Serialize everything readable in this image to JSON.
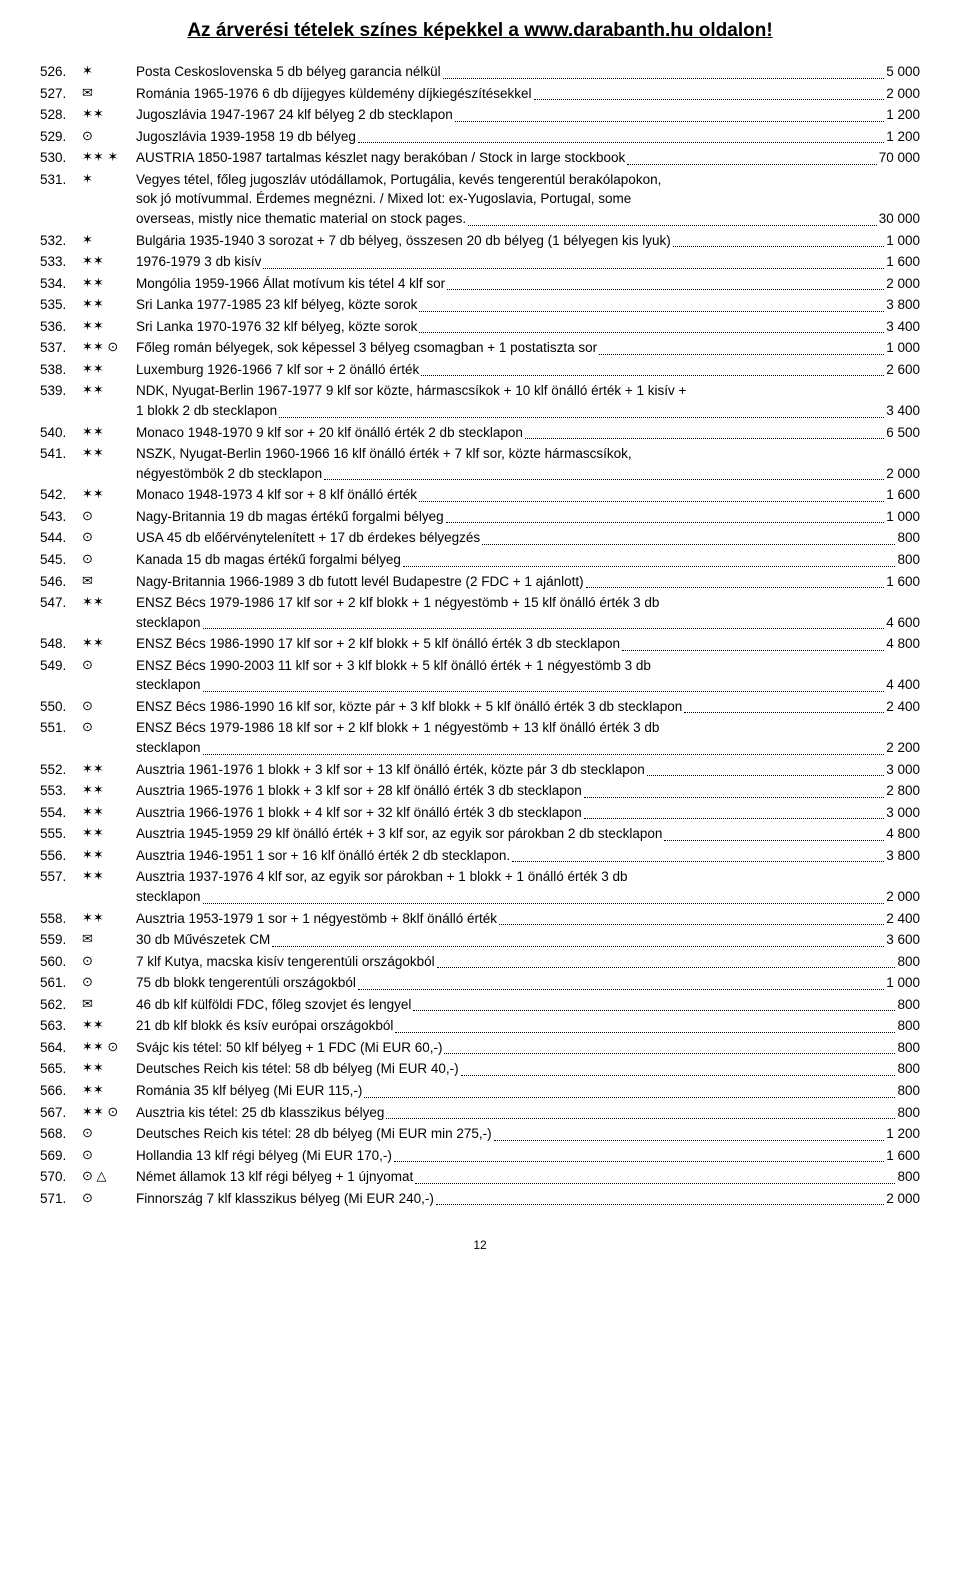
{
  "header": {
    "title": "Az árverési tételek színes képekkel a www.darabanth.hu oldalon!"
  },
  "page_number": "12",
  "items": [
    {
      "lot": "526.",
      "sym": "✶",
      "desc": "Posta Ceskoslovenska 5 db bélyeg garancia nélkül",
      "price": "5 000"
    },
    {
      "lot": "527.",
      "sym": "✉",
      "desc": "Románia 1965-1976 6 db díjjegyes küldemény díjkiegészítésekkel",
      "price": "2 000"
    },
    {
      "lot": "528.",
      "sym": "✶✶",
      "desc": "Jugoszlávia 1947-1967 24 klf bélyeg 2 db stecklapon",
      "price": "1 200"
    },
    {
      "lot": "529.",
      "sym": "⊙",
      "desc": "Jugoszlávia 1939-1958 19 db bélyeg",
      "price": "1 200"
    },
    {
      "lot": "530.",
      "sym": "✶✶ ✶",
      "desc": "AUSTRIA 1850-1987 tartalmas készlet nagy berakóban / Stock in large stockbook",
      "price": "70 000"
    },
    {
      "lot": "531.",
      "sym": "✶",
      "desc1": "Vegyes tétel, főleg jugoszláv utódállamok, Portugália, kevés tengerentúl berakólapokon,",
      "desc2": "sok jó motívummal. Érdemes megnézni. / Mixed lot: ex-Yugoslavia, Portugal, some",
      "desc3": "overseas, mistly nice thematic material on stock pages.",
      "price": "30 000",
      "multi": 3
    },
    {
      "lot": "532.",
      "sym": "✶",
      "desc": "Bulgária 1935-1940 3 sorozat + 7 db bélyeg, összesen 20 db bélyeg (1 bélyegen kis lyuk)",
      "price": "1 000"
    },
    {
      "lot": "533.",
      "sym": "✶✶",
      "desc": "1976-1979 3 db kisív",
      "price": "1 600"
    },
    {
      "lot": "534.",
      "sym": "✶✶",
      "desc": "Mongólia 1959-1966 Állat motívum kis tétel 4 klf sor",
      "price": "2 000"
    },
    {
      "lot": "535.",
      "sym": "✶✶",
      "desc": "Sri Lanka 1977-1985 23 klf bélyeg, közte sorok",
      "price": "3 800"
    },
    {
      "lot": "536.",
      "sym": "✶✶",
      "desc": "Sri Lanka 1970-1976 32 klf bélyeg, közte sorok",
      "price": "3 400"
    },
    {
      "lot": "537.",
      "sym": "✶✶ ⊙",
      "desc": "Főleg román bélyegek, sok képessel 3 bélyeg csomagban + 1 postatiszta sor",
      "price": "1 000"
    },
    {
      "lot": "538.",
      "sym": "✶✶",
      "desc": "Luxemburg 1926-1966 7 klf sor + 2 önálló érték",
      "price": "2 600"
    },
    {
      "lot": "539.",
      "sym": "✶✶",
      "desc1": "NDK, Nyugat-Berlin 1967-1977 9 klf sor közte, hármascsíkok + 10 klf önálló érték + 1 kisív +",
      "desc3": "1 blokk 2 db stecklapon",
      "price": "3 400",
      "multi": 2
    },
    {
      "lot": "540.",
      "sym": "✶✶",
      "desc": "Monaco 1948-1970 9 klf sor + 20 klf önálló érték 2 db stecklapon",
      "price": "6 500"
    },
    {
      "lot": "541.",
      "sym": "✶✶",
      "desc1": "NSZK, Nyugat-Berlin 1960-1966 16 klf önálló érték + 7 klf sor, közte hármascsíkok,",
      "desc3": "négyestömbök 2 db stecklapon",
      "price": "2 000",
      "multi": 2
    },
    {
      "lot": "542.",
      "sym": "✶✶",
      "desc": "Monaco 1948-1973 4 klf sor + 8 klf önálló érték",
      "price": "1 600"
    },
    {
      "lot": "543.",
      "sym": "⊙",
      "desc": "Nagy-Britannia 19 db magas értékű forgalmi bélyeg",
      "price": "1 000"
    },
    {
      "lot": "544.",
      "sym": "⊙",
      "desc": "USA 45 db előérvénytelenített + 17 db érdekes bélyegzés",
      "price": "800"
    },
    {
      "lot": "545.",
      "sym": "⊙",
      "desc": "Kanada 15 db magas értékű forgalmi bélyeg",
      "price": "800"
    },
    {
      "lot": "546.",
      "sym": "✉",
      "desc": "Nagy-Britannia 1966-1989 3 db futott levél Budapestre (2 FDC + 1 ajánlott)",
      "price": "1 600"
    },
    {
      "lot": "547.",
      "sym": "✶✶",
      "desc1": "ENSZ Bécs 1979-1986 17 klf sor + 2 klf blokk + 1 négyestömb + 15 klf önálló érték 3 db",
      "desc3": "stecklapon",
      "price": "4 600",
      "multi": 2
    },
    {
      "lot": "548.",
      "sym": "✶✶",
      "desc": "ENSZ Bécs 1986-1990 17 klf sor + 2 klf blokk + 5 klf önálló érték 3 db stecklapon",
      "price": "4 800"
    },
    {
      "lot": "549.",
      "sym": "⊙",
      "desc1": "ENSZ Bécs 1990-2003 11 klf sor + 3 klf blokk + 5 klf önálló érték + 1 négyestömb 3 db",
      "desc3": "stecklapon",
      "price": "4 400",
      "multi": 2
    },
    {
      "lot": "550.",
      "sym": "⊙",
      "desc": "ENSZ Bécs 1986-1990 16 klf sor, közte pár + 3 klf blokk + 5 klf önálló érték 3 db stecklapon",
      "price": "2 400"
    },
    {
      "lot": "551.",
      "sym": "⊙",
      "desc1": "ENSZ Bécs 1979-1986 18 klf sor + 2 klf blokk + 1 négyestömb + 13 klf önálló érték 3 db",
      "desc3": "stecklapon",
      "price": "2 200",
      "multi": 2
    },
    {
      "lot": "552.",
      "sym": "✶✶",
      "desc": "Ausztria 1961-1976 1 blokk + 3 klf sor + 13 klf önálló érték, közte pár 3 db stecklapon",
      "price": "3 000"
    },
    {
      "lot": "553.",
      "sym": "✶✶",
      "desc": "Ausztria 1965-1976 1 blokk + 3 klf sor + 28 klf önálló érték 3 db stecklapon",
      "price": "2 800"
    },
    {
      "lot": "554.",
      "sym": "✶✶",
      "desc": "Ausztria 1966-1976 1 blokk + 4 klf sor + 32 klf önálló érték 3 db stecklapon",
      "price": "3 000"
    },
    {
      "lot": "555.",
      "sym": "✶✶",
      "desc": "Ausztria 1945-1959 29 klf önálló érték + 3 klf sor, az egyik sor párokban 2 db stecklapon",
      "price": "4 800"
    },
    {
      "lot": "556.",
      "sym": "✶✶",
      "desc": "Ausztria 1946-1951 1 sor + 16 klf önálló érték 2 db stecklapon.",
      "price": "3 800"
    },
    {
      "lot": "557.",
      "sym": "✶✶",
      "desc1": "Ausztria 1937-1976 4 klf sor, az egyik sor párokban + 1 blokk + 1 önálló érték 3 db",
      "desc3": "stecklapon",
      "price": "2 000",
      "multi": 2
    },
    {
      "lot": "558.",
      "sym": "✶✶",
      "desc": "Ausztria 1953-1979 1 sor + 1 négyestömb + 8klf önálló érték",
      "price": "2 400"
    },
    {
      "lot": "559.",
      "sym": "✉",
      "desc": "30 db Művészetek CM",
      "price": "3 600"
    },
    {
      "lot": "560.",
      "sym": "⊙",
      "desc": "7 klf Kutya, macska kisív tengerentúli országokból",
      "price": "800"
    },
    {
      "lot": "561.",
      "sym": "⊙",
      "desc": "75 db blokk tengerentúli országokból",
      "price": "1 000"
    },
    {
      "lot": "562.",
      "sym": "✉",
      "desc": "46 db klf külföldi FDC, főleg szovjet és lengyel",
      "price": "800"
    },
    {
      "lot": "563.",
      "sym": "✶✶",
      "desc": "21 db klf blokk és ksív európai országokból",
      "price": "800"
    },
    {
      "lot": "564.",
      "sym": "✶✶ ⊙",
      "desc": "Svájc kis tétel: 50 klf bélyeg + 1 FDC (Mi EUR 60,-)",
      "price": "800"
    },
    {
      "lot": "565.",
      "sym": "✶✶",
      "desc": "Deutsches Reich kis tétel: 58 db bélyeg (Mi EUR 40,-)",
      "price": "800"
    },
    {
      "lot": "566.",
      "sym": "✶✶",
      "desc": "Románia 35 klf bélyeg (Mi EUR 115,-)",
      "price": "800"
    },
    {
      "lot": "567.",
      "sym": "✶✶ ⊙",
      "desc": "Ausztria kis tétel: 25 db klasszikus bélyeg",
      "price": "800"
    },
    {
      "lot": "568.",
      "sym": "⊙",
      "desc": "Deutsches Reich kis tétel: 28 db bélyeg (Mi EUR min 275,-)",
      "price": "1 200"
    },
    {
      "lot": "569.",
      "sym": "⊙",
      "desc": "Hollandia 13 klf régi bélyeg (Mi EUR 170,-)",
      "price": "1 600"
    },
    {
      "lot": "570.",
      "sym": "⊙ △",
      "desc": "Német államok 13 klf régi bélyeg + 1 újnyomat",
      "price": "800"
    },
    {
      "lot": "571.",
      "sym": "⊙",
      "desc": "Finnország 7 klf klasszikus bélyeg (Mi EUR 240,-)",
      "price": "2 000"
    }
  ]
}
